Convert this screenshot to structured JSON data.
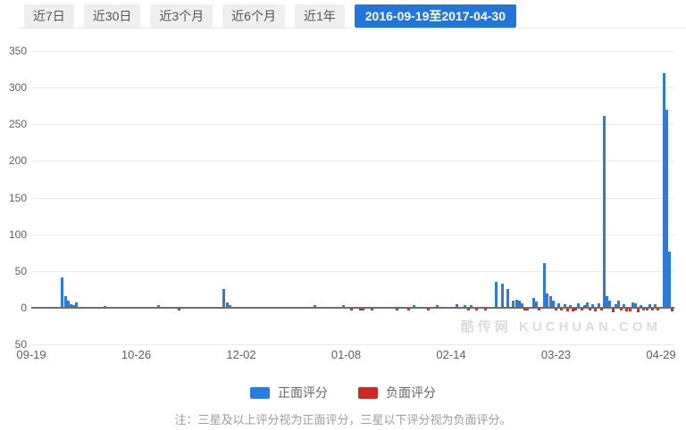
{
  "tabs": [
    {
      "label": "近7日",
      "selected": false
    },
    {
      "label": "近30日",
      "selected": false
    },
    {
      "label": "近3个月",
      "selected": false
    },
    {
      "label": "近6个月",
      "selected": false
    },
    {
      "label": "近1年",
      "selected": false
    },
    {
      "label": "2016-09-19至2017-04-30",
      "selected": true
    }
  ],
  "watermark": "酷传网 KUCHUAN.COM",
  "legend": {
    "positive_label": "正面评分",
    "negative_label": "负面评分"
  },
  "note": "注：三星及以上评分视为正面评分，三星以下评分视为负面评分。",
  "colors": {
    "positive": "#2a7bdb",
    "negative": "#cb2a27",
    "tab_selected_bg": "#2176d9",
    "grid": "#eaeaea",
    "axis": "#6d6d6d",
    "watermark": "#dcdcdc"
  },
  "chart_data": {
    "type": "bar",
    "title": "",
    "x_axis": {
      "unit": "days since 2016-09-19",
      "start": "2016-09-19",
      "end": "2017-04-30",
      "tick_labels": [
        "09-19",
        "10-26",
        "12-02",
        "01-08",
        "02-14",
        "03-23",
        "04-29"
      ],
      "tick_days": [
        0,
        37,
        74,
        111,
        148,
        185,
        222
      ],
      "total_days": 222
    },
    "y_axis": {
      "ticks": [
        350,
        300,
        250,
        200,
        150,
        100,
        50,
        0,
        -50
      ],
      "range": [
        -50,
        350
      ],
      "labels_absolute": true
    },
    "legend_position": "bottom",
    "grid": true,
    "series": [
      {
        "name": "正面评分",
        "color": "#2a7bdb",
        "points": [
          [
            11,
            40
          ],
          [
            12,
            15
          ],
          [
            13,
            8
          ],
          [
            14,
            4
          ],
          [
            15,
            3
          ],
          [
            16,
            6
          ],
          [
            26,
            1
          ],
          [
            45,
            2
          ],
          [
            68,
            24
          ],
          [
            69,
            6
          ],
          [
            70,
            3
          ],
          [
            100,
            3
          ],
          [
            110,
            3
          ],
          [
            135,
            3
          ],
          [
            143,
            3
          ],
          [
            150,
            4
          ],
          [
            153,
            3
          ],
          [
            155,
            3
          ],
          [
            164,
            34
          ],
          [
            166,
            31
          ],
          [
            168,
            24
          ],
          [
            170,
            8
          ],
          [
            171,
            10
          ],
          [
            172,
            8
          ],
          [
            173,
            5
          ],
          [
            177,
            12
          ],
          [
            178,
            7
          ],
          [
            181,
            60
          ],
          [
            182,
            18
          ],
          [
            183,
            14
          ],
          [
            184,
            8
          ],
          [
            186,
            5
          ],
          [
            188,
            4
          ],
          [
            190,
            3
          ],
          [
            193,
            5
          ],
          [
            195,
            3
          ],
          [
            196,
            6
          ],
          [
            198,
            4
          ],
          [
            200,
            5
          ],
          [
            202,
            260
          ],
          [
            203,
            15
          ],
          [
            204,
            8
          ],
          [
            206,
            4
          ],
          [
            207,
            8
          ],
          [
            209,
            4
          ],
          [
            212,
            6
          ],
          [
            213,
            5
          ],
          [
            215,
            3
          ],
          [
            218,
            4
          ],
          [
            220,
            4
          ],
          [
            223,
            318
          ],
          [
            224,
            268
          ],
          [
            225,
            75
          ]
        ]
      },
      {
        "name": "负面评分",
        "color": "#cb2a27",
        "points": [
          [
            52,
            -3
          ],
          [
            113,
            -2
          ],
          [
            116,
            -3
          ],
          [
            117,
            -3
          ],
          [
            120,
            -2
          ],
          [
            129,
            -2
          ],
          [
            133,
            -2
          ],
          [
            140,
            -2
          ],
          [
            154,
            -2
          ],
          [
            157,
            -3
          ],
          [
            160,
            -3
          ],
          [
            174,
            -3
          ],
          [
            175,
            -2
          ],
          [
            179,
            -2
          ],
          [
            185,
            -3
          ],
          [
            187,
            -2
          ],
          [
            189,
            -4
          ],
          [
            191,
            -4
          ],
          [
            192,
            -3
          ],
          [
            194,
            -3
          ],
          [
            197,
            -3
          ],
          [
            199,
            -4
          ],
          [
            201,
            -2
          ],
          [
            205,
            -5
          ],
          [
            208,
            -3
          ],
          [
            210,
            -4
          ],
          [
            211,
            -4
          ],
          [
            214,
            -5
          ],
          [
            216,
            -3
          ],
          [
            217,
            -3
          ],
          [
            219,
            -3
          ],
          [
            221,
            -3
          ],
          [
            226,
            -4
          ]
        ]
      }
    ]
  }
}
